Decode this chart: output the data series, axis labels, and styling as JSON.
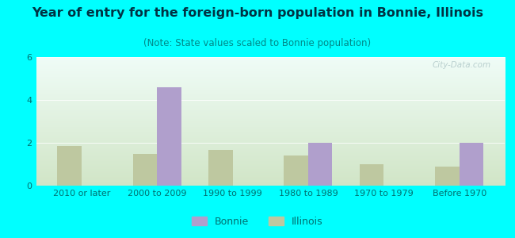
{
  "title": "Year of entry for the foreign-born population in Bonnie, Illinois",
  "subtitle": "(Note: State values scaled to Bonnie population)",
  "categories": [
    "2010 or later",
    "2000 to 2009",
    "1990 to 1999",
    "1980 to 1989",
    "1970 to 1979",
    "Before 1970"
  ],
  "bonnie_values": [
    0,
    4.6,
    0,
    2.0,
    0,
    2.0
  ],
  "illinois_values": [
    1.85,
    1.5,
    1.65,
    1.4,
    1.0,
    0.9
  ],
  "bonnie_color": "#b09fcc",
  "illinois_color": "#bec8a0",
  "background_color": "#00ffff",
  "ylim": [
    0,
    6
  ],
  "yticks": [
    0,
    2,
    4,
    6
  ],
  "bar_width": 0.32,
  "title_fontsize": 11.5,
  "subtitle_fontsize": 8.5,
  "tick_fontsize": 8,
  "legend_fontsize": 9,
  "watermark": "City-Data.com"
}
